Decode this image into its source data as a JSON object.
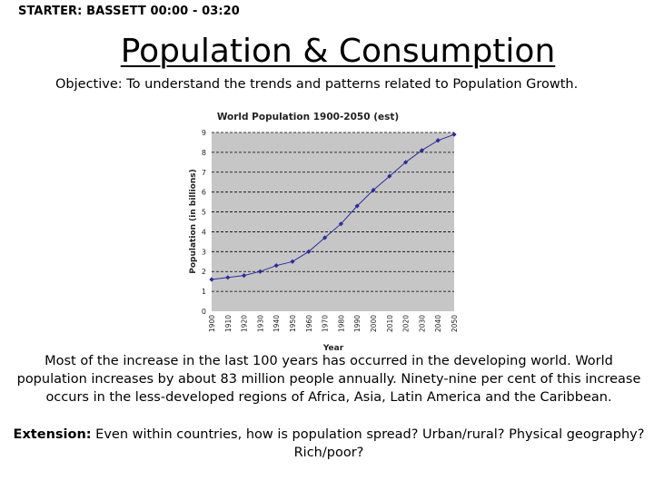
{
  "header": {
    "starter": "STARTER: BASSETT 00:00 - 03:20",
    "title": "Population & Consumption",
    "objective": "Objective: To understand the trends and patterns related to Population Growth."
  },
  "chart_data": {
    "type": "line",
    "title": "World Population 1900-2050 (est)",
    "xlabel": "Year",
    "ylabel": "Population (in billions)",
    "x": [
      1900,
      1910,
      1920,
      1930,
      1940,
      1950,
      1960,
      1970,
      1980,
      1990,
      2000,
      2010,
      2020,
      2030,
      2040,
      2050
    ],
    "values": [
      1.6,
      1.7,
      1.8,
      2.0,
      2.3,
      2.5,
      3.0,
      3.7,
      4.4,
      5.3,
      6.1,
      6.8,
      7.5,
      8.1,
      8.6,
      8.9
    ],
    "ylim": [
      0,
      9
    ],
    "xlim": [
      1900,
      2050
    ],
    "yticks": [
      "0",
      "1",
      "2",
      "3",
      "4",
      "5",
      "6",
      "7",
      "8",
      "9"
    ],
    "xticks": [
      "1900",
      "1910",
      "1920",
      "1930",
      "1940",
      "1950",
      "1960",
      "1970",
      "1980",
      "1990",
      "2000",
      "2010",
      "2020",
      "2030",
      "2040",
      "2050"
    ],
    "grid": true,
    "plot_color": "#c6c6c6",
    "line_color": "#2c2ca0"
  },
  "body": {
    "paragraph": "Most of the increase in the last 100 years  has occurred in the developing world. World population increases by about 83 million people annually. Ninety-nine per cent of this increase occurs in the less-developed regions of Africa, Asia, Latin America and the Caribbean.",
    "extension_label": "Extension:",
    "extension_text": " Even within countries, how is population spread? Urban/rural? Physical geography? Rich/poor?"
  }
}
